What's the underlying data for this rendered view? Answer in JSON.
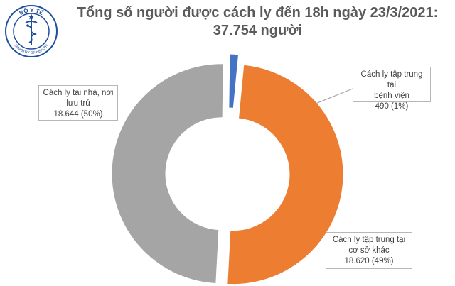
{
  "logo": {
    "top_text": "BỘ Y TẾ",
    "bottom_text": "MINISTRY OF HEALTH",
    "icon": "caduceus-icon",
    "colors": {
      "ring": "#1f4e9c",
      "star": "#1f4e9c"
    }
  },
  "title": {
    "line1": "Tổng số người được cách ly đến 18h ngày 23/3/2021:",
    "line2": "37.754 người"
  },
  "chart_data": {
    "type": "pie",
    "style": "donut-exploded",
    "slices": [
      {
        "key": "home",
        "label_line1": "Cách ly tại nhà, nơi",
        "label_line2": "lưu trú",
        "value": 18644,
        "value_text": "18.644 (50%)",
        "percent": 50,
        "color": "#a5a5a5"
      },
      {
        "key": "hospital",
        "label_line1": "Cách ly tập trung tại",
        "label_line2": "bệnh viện",
        "value": 490,
        "value_text": "490 (1%)",
        "percent": 1,
        "color": "#4472c4"
      },
      {
        "key": "other",
        "label_line1": "Cách ly tập trung tại",
        "label_line2": "cơ sở khác",
        "value": 18620,
        "value_text": "18.620 (49%)",
        "percent": 49,
        "color": "#ed7d31"
      }
    ]
  }
}
